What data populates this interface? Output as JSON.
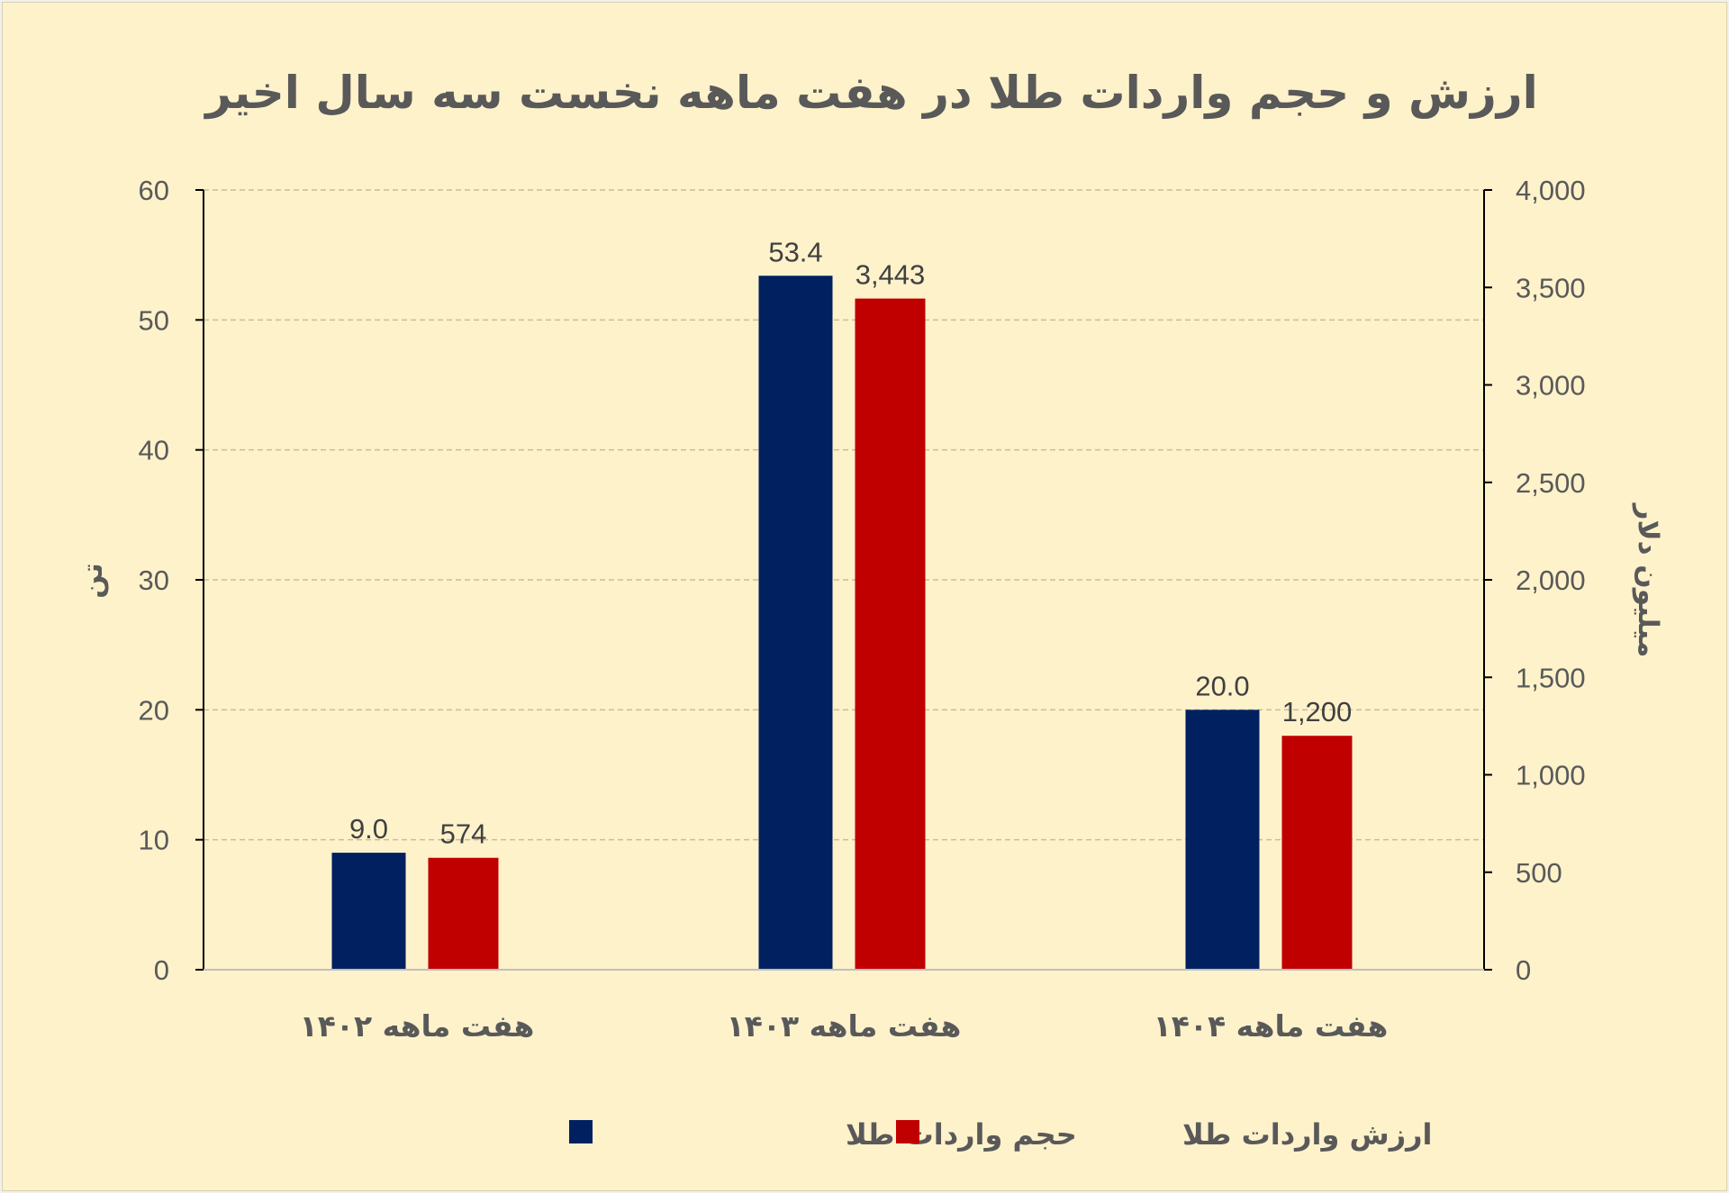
{
  "chart_data": {
    "type": "bar",
    "title": "ارزش و حجم واردات طلا در هفت ماهه نخست سه سال اخیر",
    "categories": [
      "هفت ماهه ۱۴۰۲",
      "هفت ماهه ۱۴۰۳",
      "هفت ماهه ۱۴۰۴"
    ],
    "series": [
      {
        "name": "حجم واردات طلا",
        "axis": "left",
        "color": "#002060",
        "values": [
          9.0,
          53.4,
          20.0
        ],
        "labels": [
          "9.0",
          "53.4",
          "20.0"
        ]
      },
      {
        "name": "ارزش واردات طلا",
        "axis": "right",
        "color": "#c00000",
        "values": [
          574,
          3443,
          1200
        ],
        "labels": [
          "574",
          "3,443",
          "1,200"
        ]
      }
    ],
    "ylabel_left": "تن",
    "ylabel_right": "میلیون دلار",
    "ylim_left": [
      0,
      60
    ],
    "ylim_right": [
      0,
      4000
    ],
    "yticks_left": [
      "0",
      "10",
      "20",
      "30",
      "40",
      "50",
      "60"
    ],
    "yticks_right": [
      "0",
      "500",
      "1,000",
      "1,500",
      "2,000",
      "2,500",
      "3,000",
      "3,500",
      "4,000"
    ],
    "grid": true,
    "legend_position": "bottom",
    "background_color": "#fef2cb"
  }
}
